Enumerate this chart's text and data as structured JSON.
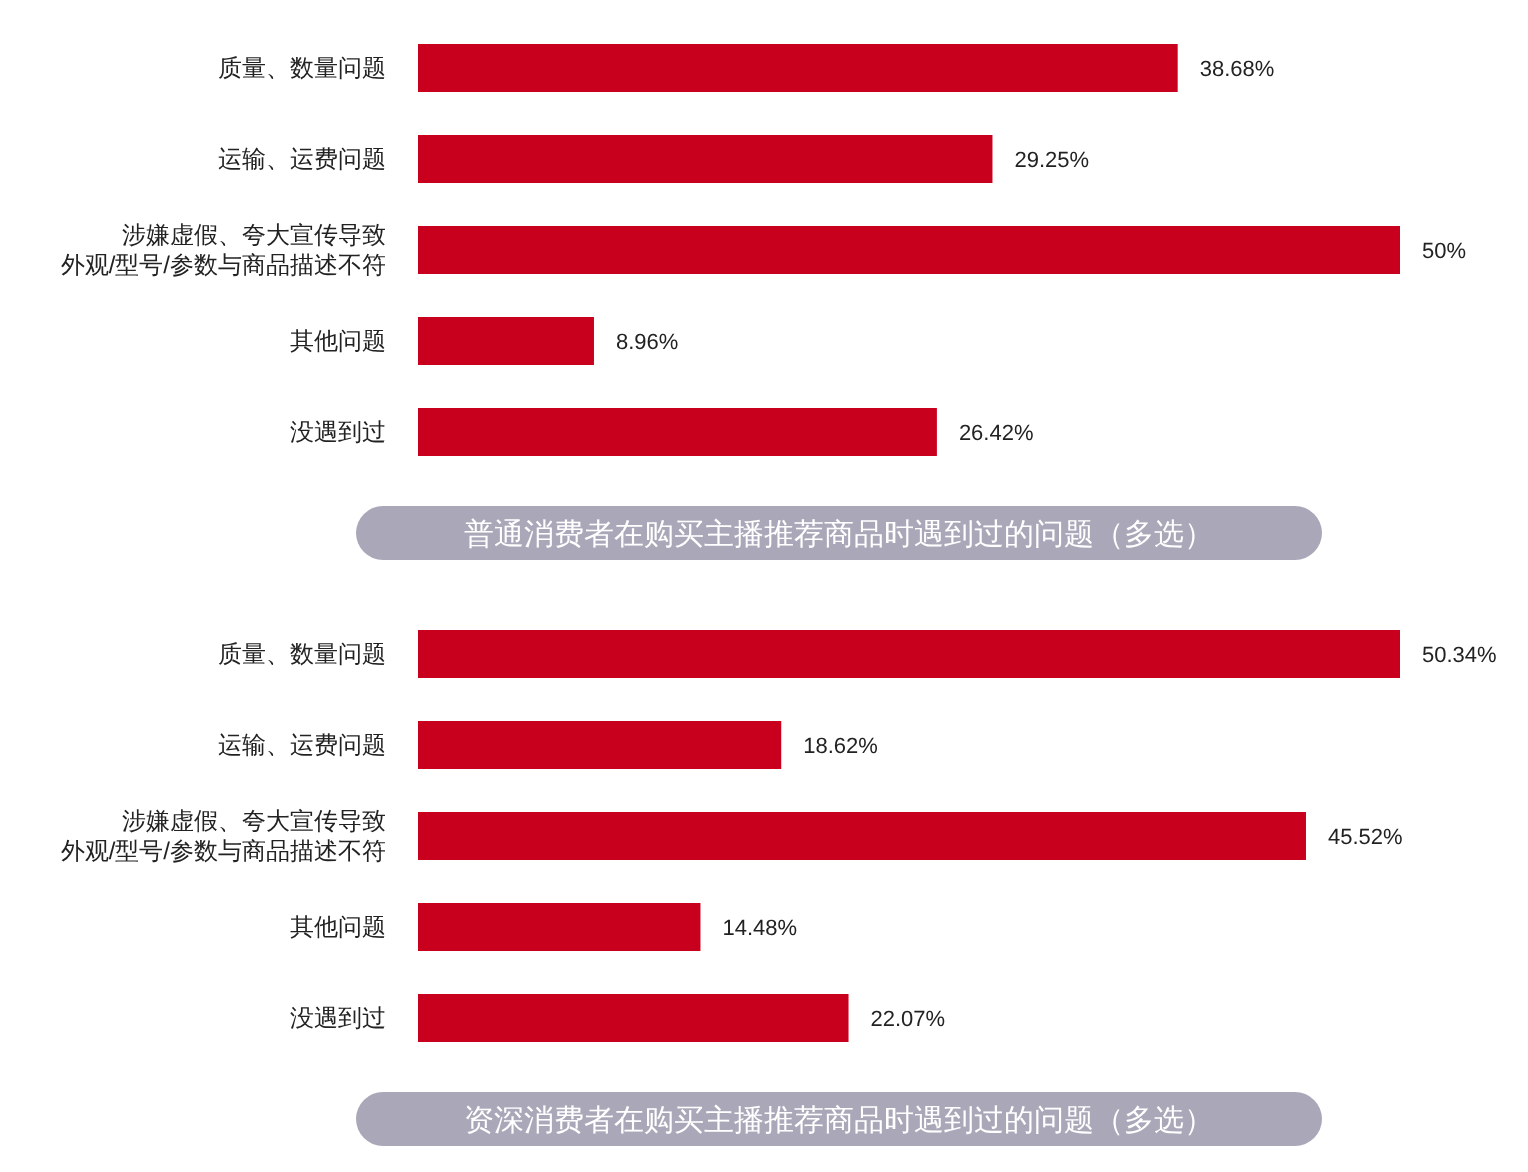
{
  "chart_data": [
    {
      "type": "bar",
      "orientation": "horizontal",
      "title": "普通消费者在购买主播推荐商品时遇到过的问题（多选）",
      "categories": [
        "质量、数量问题",
        "运输、运费问题",
        "涉嫌虚假、夸大宣传导致外观/型号/参数与商品描述不符",
        "其他问题",
        "没遇到过"
      ],
      "values": [
        38.68,
        29.25,
        50,
        8.96,
        26.42
      ],
      "color": "#c8001e",
      "value_labels": [
        "38.68%",
        "29.25%",
        "50%",
        "8.96%",
        "26.42%"
      ]
    },
    {
      "type": "bar",
      "orientation": "horizontal",
      "title": "资深消费者在购买主播推荐商品时遇到过的问题（多选）",
      "categories": [
        "质量、数量问题",
        "运输、运费问题",
        "涉嫌虚假、夸大宣传导致外观/型号/参数与商品描述不符",
        "其他问题",
        "没遇到过"
      ],
      "values": [
        50.34,
        18.62,
        45.52,
        14.48,
        22.07
      ],
      "color": "#c8001e",
      "value_labels": [
        "50.34%",
        "18.62%",
        "45.52%",
        "14.48%",
        "22.07%"
      ]
    }
  ]
}
